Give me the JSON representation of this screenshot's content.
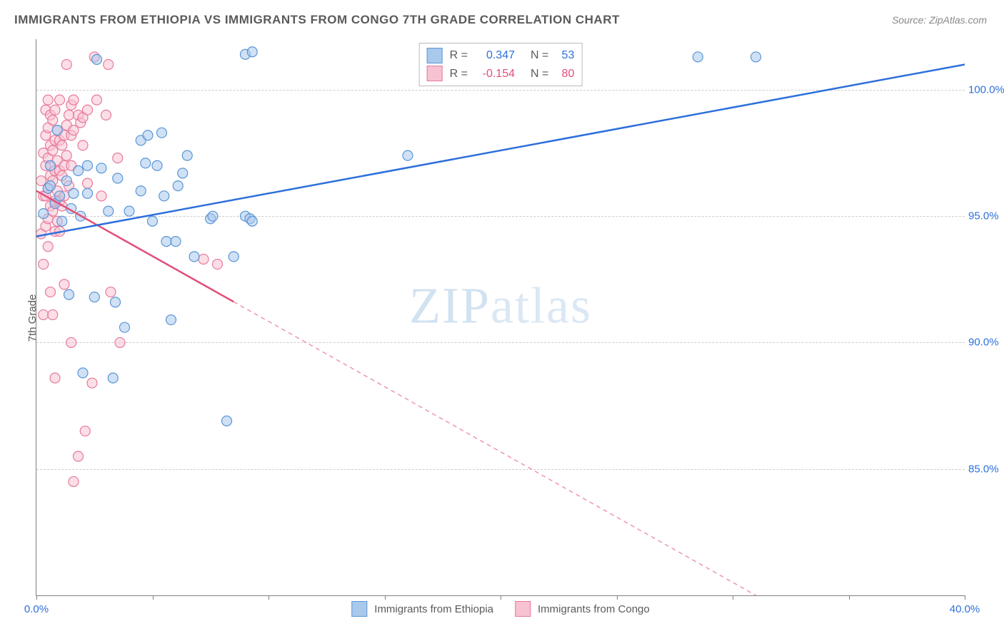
{
  "title": "IMMIGRANTS FROM ETHIOPIA VS IMMIGRANTS FROM CONGO 7TH GRADE CORRELATION CHART",
  "source_prefix": "Source: ",
  "source_name": "ZipAtlas.com",
  "ylabel": "7th Grade",
  "watermark_a": "ZIP",
  "watermark_b": "atlas",
  "chart": {
    "type": "scatter",
    "xlim": [
      0,
      40
    ],
    "ylim": [
      80,
      102
    ],
    "x_ticks": [
      0,
      5,
      10,
      15,
      20,
      25,
      30,
      35,
      40
    ],
    "x_tick_labels": {
      "0": "0.0%",
      "40": "40.0%"
    },
    "y_ticks": [
      85,
      90,
      95,
      100
    ],
    "y_tick_labels": {
      "85": "85.0%",
      "90": "90.0%",
      "95": "95.0%",
      "100": "100.0%"
    },
    "grid_color": "#cccccc",
    "axis_color": "#808080",
    "background": "#ffffff",
    "series": [
      {
        "name": "Immigrants from Ethiopia",
        "point_fill": "#a9c9ec",
        "point_stroke": "#5a96d6",
        "point_opacity": 0.55,
        "line_color": "#2d6fdc",
        "line_width": 2.5,
        "R": 0.347,
        "N": 53,
        "trend": {
          "x1": 0,
          "y1": 94.2,
          "x2": 40,
          "y2": 101.0,
          "solid_until_x": 40
        },
        "points": [
          [
            0.3,
            95.1
          ],
          [
            0.5,
            96.1
          ],
          [
            0.6,
            97.0
          ],
          [
            0.6,
            96.2
          ],
          [
            0.8,
            95.5
          ],
          [
            0.9,
            98.4
          ],
          [
            1.0,
            95.8
          ],
          [
            1.1,
            94.8
          ],
          [
            1.3,
            96.4
          ],
          [
            1.4,
            91.9
          ],
          [
            1.5,
            95.3
          ],
          [
            1.6,
            95.9
          ],
          [
            1.8,
            96.8
          ],
          [
            1.9,
            95.0
          ],
          [
            2.0,
            88.8
          ],
          [
            2.2,
            97.0
          ],
          [
            2.2,
            95.9
          ],
          [
            2.5,
            91.8
          ],
          [
            2.6,
            101.2
          ],
          [
            2.8,
            96.9
          ],
          [
            3.1,
            95.2
          ],
          [
            3.3,
            88.6
          ],
          [
            3.4,
            91.6
          ],
          [
            3.5,
            96.5
          ],
          [
            3.8,
            90.6
          ],
          [
            4.0,
            95.2
          ],
          [
            4.5,
            98.0
          ],
          [
            4.5,
            96.0
          ],
          [
            4.7,
            97.1
          ],
          [
            4.8,
            98.2
          ],
          [
            5.0,
            94.8
          ],
          [
            5.2,
            97.0
          ],
          [
            5.4,
            98.3
          ],
          [
            5.5,
            95.8
          ],
          [
            5.6,
            94.0
          ],
          [
            5.8,
            90.9
          ],
          [
            6.0,
            94.0
          ],
          [
            6.1,
            96.2
          ],
          [
            6.3,
            96.7
          ],
          [
            6.5,
            97.4
          ],
          [
            6.8,
            93.4
          ],
          [
            7.5,
            94.9
          ],
          [
            7.6,
            95.0
          ],
          [
            8.2,
            86.9
          ],
          [
            8.5,
            93.4
          ],
          [
            9.0,
            95.0
          ],
          [
            9.0,
            101.4
          ],
          [
            9.2,
            94.9
          ],
          [
            9.3,
            101.5
          ],
          [
            9.3,
            94.8
          ],
          [
            16.0,
            97.4
          ],
          [
            28.5,
            101.3
          ],
          [
            31.0,
            101.3
          ]
        ]
      },
      {
        "name": "Immigrants from Congo",
        "point_fill": "#f7c2d1",
        "point_stroke": "#e77a9b",
        "point_opacity": 0.55,
        "line_color": "#e24f79",
        "line_width": 2.5,
        "R": -0.154,
        "N": 80,
        "trend": {
          "x1": 0,
          "y1": 96.0,
          "x2": 31,
          "y2": 80.0,
          "solid_until_x": 8.5
        },
        "points": [
          [
            0.2,
            96.4
          ],
          [
            0.2,
            94.3
          ],
          [
            0.3,
            97.5
          ],
          [
            0.3,
            95.8
          ],
          [
            0.3,
            93.1
          ],
          [
            0.3,
            91.1
          ],
          [
            0.4,
            99.2
          ],
          [
            0.4,
            98.2
          ],
          [
            0.4,
            97.0
          ],
          [
            0.4,
            95.8
          ],
          [
            0.4,
            94.6
          ],
          [
            0.5,
            99.6
          ],
          [
            0.5,
            98.5
          ],
          [
            0.5,
            97.3
          ],
          [
            0.5,
            96.1
          ],
          [
            0.5,
            94.9
          ],
          [
            0.5,
            93.8
          ],
          [
            0.6,
            99.0
          ],
          [
            0.6,
            97.8
          ],
          [
            0.6,
            96.6
          ],
          [
            0.6,
            95.4
          ],
          [
            0.6,
            92.0
          ],
          [
            0.7,
            98.8
          ],
          [
            0.7,
            97.6
          ],
          [
            0.7,
            96.4
          ],
          [
            0.7,
            95.2
          ],
          [
            0.7,
            91.1
          ],
          [
            0.8,
            99.2
          ],
          [
            0.8,
            98.0
          ],
          [
            0.8,
            96.8
          ],
          [
            0.8,
            95.6
          ],
          [
            0.8,
            94.4
          ],
          [
            0.8,
            88.6
          ],
          [
            0.9,
            98.4
          ],
          [
            0.9,
            97.2
          ],
          [
            0.9,
            96.0
          ],
          [
            0.9,
            94.8
          ],
          [
            1.0,
            99.6
          ],
          [
            1.0,
            98.0
          ],
          [
            1.0,
            96.8
          ],
          [
            1.0,
            95.6
          ],
          [
            1.0,
            94.4
          ],
          [
            1.1,
            97.8
          ],
          [
            1.1,
            96.6
          ],
          [
            1.1,
            95.4
          ],
          [
            1.2,
            98.2
          ],
          [
            1.2,
            97.0
          ],
          [
            1.2,
            95.8
          ],
          [
            1.2,
            92.3
          ],
          [
            1.3,
            101.0
          ],
          [
            1.3,
            98.6
          ],
          [
            1.3,
            97.4
          ],
          [
            1.4,
            99.0
          ],
          [
            1.4,
            96.2
          ],
          [
            1.5,
            99.4
          ],
          [
            1.5,
            98.2
          ],
          [
            1.5,
            97.0
          ],
          [
            1.5,
            90.0
          ],
          [
            1.6,
            99.6
          ],
          [
            1.6,
            98.4
          ],
          [
            1.6,
            84.5
          ],
          [
            1.8,
            99.0
          ],
          [
            1.8,
            85.5
          ],
          [
            1.9,
            98.7
          ],
          [
            2.0,
            97.8
          ],
          [
            2.0,
            98.9
          ],
          [
            2.1,
            86.5
          ],
          [
            2.2,
            99.2
          ],
          [
            2.2,
            96.3
          ],
          [
            2.4,
            88.4
          ],
          [
            2.5,
            101.3
          ],
          [
            2.6,
            99.6
          ],
          [
            2.8,
            95.8
          ],
          [
            3.0,
            99.0
          ],
          [
            3.1,
            101.0
          ],
          [
            3.2,
            92.0
          ],
          [
            3.5,
            97.3
          ],
          [
            3.6,
            90.0
          ],
          [
            7.2,
            93.3
          ],
          [
            7.8,
            93.1
          ]
        ]
      }
    ],
    "legend_top": {
      "r_label": "R =",
      "n_label": "N =",
      "value_color_1": "#2d6fdc",
      "value_color_2": "#e24f79",
      "text_color": "#5a5a5a"
    },
    "legend_bottom_text_color": "#5a5a5a",
    "x_axis_label_color": "#2d6fdc",
    "y_axis_label_color": "#2d6fdc",
    "marker_radius": 7
  }
}
